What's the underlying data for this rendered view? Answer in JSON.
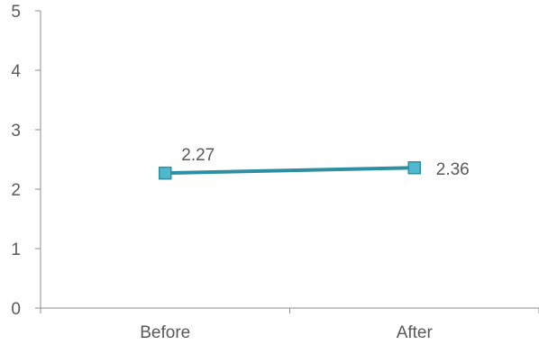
{
  "chart_data": {
    "type": "line",
    "categories": [
      "Before",
      "After"
    ],
    "series": [
      {
        "values": [
          2.27,
          2.36
        ],
        "data_labels": [
          "2.27",
          "2.36"
        ],
        "color": "#2e8fa0",
        "marker_fill": "#4fb8cf",
        "marker_stroke": "#2e8fa0",
        "marker": "square"
      }
    ],
    "ylim": [
      0,
      5
    ],
    "yticks": [
      "0",
      "1",
      "2",
      "3",
      "4",
      "5"
    ],
    "grid": false,
    "legend": "none",
    "axis_color": "#8c8c8c",
    "label_color": "#595959"
  }
}
